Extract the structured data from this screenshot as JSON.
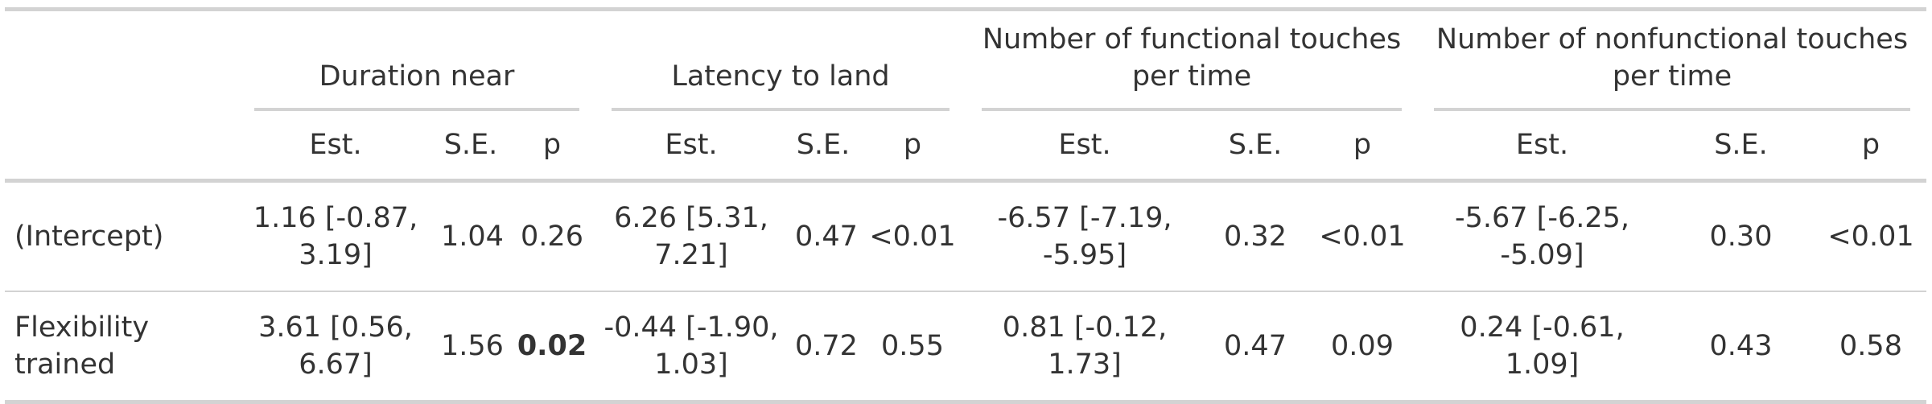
{
  "table": {
    "spanners": [
      {
        "label": "Duration near"
      },
      {
        "label": "Latency to land"
      },
      {
        "label": "Number of functional touches per time"
      },
      {
        "label": "Number of nonfunctional touches per time"
      }
    ],
    "column_headers": [
      "Est.",
      "S.E.",
      "p"
    ],
    "rows": [
      {
        "label": "(Intercept)",
        "cells": [
          {
            "est": "1.16 [-0.87, 3.19]",
            "se": "1.04",
            "p": "0.26",
            "p_bold": false
          },
          {
            "est": "6.26 [5.31, 7.21]",
            "se": "0.47",
            "p": "<0.01",
            "p_bold": false
          },
          {
            "est": "-6.57 [-7.19, -5.95]",
            "se": "0.32",
            "p": "<0.01",
            "p_bold": false
          },
          {
            "est": "-5.67 [-6.25, -5.09]",
            "se": "0.30",
            "p": "<0.01",
            "p_bold": false
          }
        ]
      },
      {
        "label": "Flexibility trained",
        "cells": [
          {
            "est": "3.61 [0.56, 6.67]",
            "se": "1.56",
            "p": "0.02",
            "p_bold": true
          },
          {
            "est": "-0.44 [-1.90, 1.03]",
            "se": "0.72",
            "p": "0.55",
            "p_bold": false
          },
          {
            "est": "0.81 [-0.12, 1.73]",
            "se": "0.47",
            "p": "0.09",
            "p_bold": false
          },
          {
            "est": "0.24 [-0.61, 1.09]",
            "se": "0.43",
            "p": "0.58",
            "p_bold": false
          }
        ]
      }
    ]
  }
}
